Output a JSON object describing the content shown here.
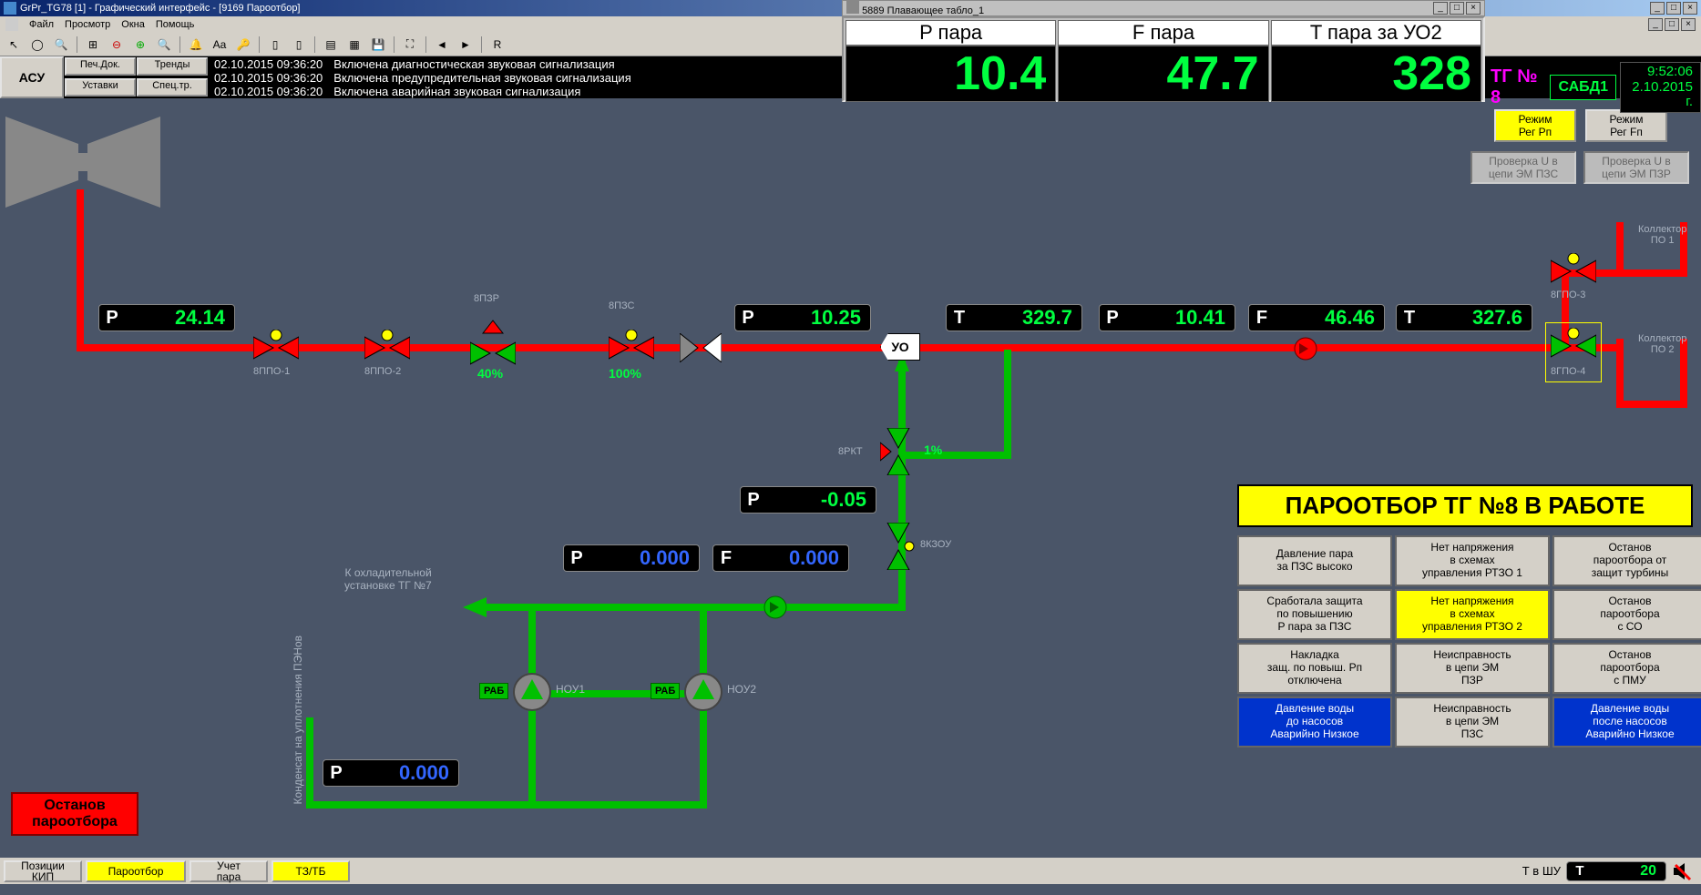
{
  "app": {
    "title": "GrPr_TG78 [1] - Графический интерфейс - [9169 Пароотбор]",
    "floating_title": "5889 Плавающее табло_1"
  },
  "menu": [
    "Файл",
    "Просмотр",
    "Окна",
    "Помощь"
  ],
  "toolbar_letter": "R",
  "top_buttons": {
    "asu": "АСУ",
    "b1": "Печ.Док.",
    "b2": "Тренды",
    "b3": "Уставки",
    "b4": "Спец.тр."
  },
  "log": {
    "times": [
      "02.10.2015 09:36:20",
      "02.10.2015 09:36:20",
      "02.10.2015 09:36:20"
    ],
    "msgs": [
      "Включена диагностическая звуковая сигнализация",
      "Включена предупредительная звуковая сигнализация",
      "Включена аварийная звуковая сигнализация"
    ]
  },
  "big_reads": [
    {
      "hdr": "P пара",
      "val": "10.4"
    },
    {
      "hdr": "F пара",
      "val": "47.7"
    },
    {
      "hdr": "T пара за УО2",
      "val": "328"
    }
  ],
  "right_status": {
    "tg": "ТГ № 8",
    "sabd": "САБД1",
    "time": "9:52:06",
    "date": "2.10.2015 г."
  },
  "mode_buttons": {
    "m1": "Режим\nРег Рп",
    "m2": "Режим\nРег Fп",
    "m3": "Проверка U в\nцепи ЭМ ПЗС",
    "m4": "Проверка U в\nцепи ЭМ ПЗР"
  },
  "indicators": {
    "p1": {
      "tag": "P",
      "val": "24.14"
    },
    "p2": {
      "tag": "P",
      "val": "10.25"
    },
    "t1": {
      "tag": "T",
      "val": "329.7"
    },
    "p3": {
      "tag": "P",
      "val": "10.41"
    },
    "f1": {
      "tag": "F",
      "val": "46.46"
    },
    "t2": {
      "tag": "T",
      "val": "327.6"
    },
    "p4": {
      "tag": "P",
      "val": "-0.05"
    },
    "p5": {
      "tag": "P",
      "val": "0.000"
    },
    "f2": {
      "tag": "F",
      "val": "0.000"
    },
    "p6": {
      "tag": "P",
      "val": "0.000"
    }
  },
  "valve_labels": {
    "v1": "8ППО-1",
    "v2": "8ППО-2",
    "v3": "8ПЗР",
    "v4": "8ПЗС",
    "v5": "8ГПО-3",
    "v6": "8ГПО-4",
    "rkt": "8РКТ",
    "kzou": "8КЗОУ",
    "pct40": "40%",
    "pct100": "100%",
    "pct1": "1%",
    "coll1": "Коллектор\nПО 1",
    "coll2": "Коллектор\nПО 2",
    "uo": "УО",
    "cooling": "К охладительной\nустановке ТГ №7",
    "vtext": "Конденсат на уплотнения ПЭНов",
    "nou1": "НОУ1",
    "nou2": "НОУ2",
    "rab": "РАБ"
  },
  "status_banner": "ПАРООТБОР ТГ №8 В РАБОТЕ",
  "alarms": [
    {
      "t": "Давление пара\nза ПЗС высоко",
      "c": ""
    },
    {
      "t": "Нет напряжения\nв схемах\nуправления РТЗО 1",
      "c": ""
    },
    {
      "t": "Останов\nпароотбора от\nзащит турбины",
      "c": ""
    },
    {
      "t": "Сработала защита\nпо повышению\nP пара за ПЗС",
      "c": ""
    },
    {
      "t": "Нет напряжения\nв схемах\nуправления РТЗО 2",
      "c": "yellow"
    },
    {
      "t": "Останов\nпароотбора\nс СО",
      "c": ""
    },
    {
      "t": "Накладка\nзащ. по повыш. Рп\nотключена",
      "c": ""
    },
    {
      "t": "Неисправность\nв цепи ЭМ\nПЗР",
      "c": ""
    },
    {
      "t": "Останов\nпароотбора\nс ПМУ",
      "c": ""
    },
    {
      "t": "Давление воды\nдо насосов\nАварийно Низкое",
      "c": "blue"
    },
    {
      "t": "Неисправность\nв цепи ЭМ\nПЗС",
      "c": ""
    },
    {
      "t": "Давление воды\nпосле насосов\nАварийно Низкое",
      "c": "blue"
    }
  ],
  "stop_btn": "Останов\nпароотбора",
  "bottom_tabs": [
    {
      "t": "Позиции\nКИП",
      "c": ""
    },
    {
      "t": "Пароотбор",
      "c": "yellow"
    },
    {
      "t": "Учет\nпара",
      "c": ""
    },
    {
      "t": "ТЗ/ТБ",
      "c": "yellow"
    }
  ],
  "bottom_right": {
    "label": "Т в ШУ",
    "tag": "Т",
    "val": "20"
  }
}
